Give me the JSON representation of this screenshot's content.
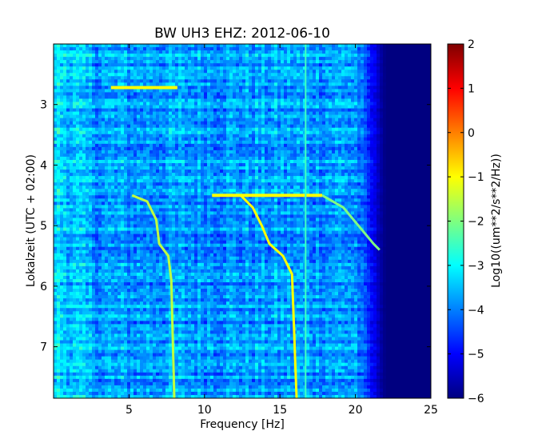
{
  "chart_data": {
    "type": "heatmap",
    "title": "BW UH3 EHZ: 2012-06-10",
    "xlabel": "Frequency [Hz]",
    "ylabel": "Lokalzeit (UTC + 02:00)",
    "xlim": [
      0,
      25
    ],
    "ylim": [
      7.85,
      2.0
    ],
    "y_inverted": true,
    "x_ticks": [
      5,
      10,
      15,
      20,
      25
    ],
    "x_tick_labels": [
      "5",
      "10",
      "15",
      "20",
      "25"
    ],
    "y_ticks": [
      3,
      4,
      5,
      6,
      7
    ],
    "y_tick_labels": [
      "3",
      "4",
      "5",
      "6",
      "7"
    ],
    "grid": false,
    "colorbar": {
      "label": "Log10((um**2/s**2/Hz))",
      "range": [
        -6,
        2
      ],
      "ticks": [
        -6,
        -5,
        -4,
        -3,
        -2,
        -1,
        0,
        1,
        2
      ],
      "tick_labels": [
        "−6",
        "−5",
        "−4",
        "−3",
        "−2",
        "−1",
        "0",
        "1",
        "2"
      ],
      "colormap": "jet"
    },
    "background_level": -3.8,
    "high_freq_cutoff_hz": [
      20,
      22
    ],
    "high_freq_level": -6,
    "horizontal_features": [
      {
        "time": 2.72,
        "freq_range": [
          3.8,
          8.2
        ],
        "level": -1
      },
      {
        "time": 4.5,
        "freq_range": [
          10.5,
          17.8
        ],
        "level": -1
      }
    ],
    "vertical_features": [
      {
        "freq": 16.7,
        "time_range": [
          2.0,
          7.85
        ],
        "level": -2.5
      }
    ],
    "curves": [
      {
        "name": "",
        "points": [
          [
            5.2,
            4.5
          ],
          [
            6.2,
            4.6
          ],
          [
            6.8,
            4.9
          ],
          [
            7.0,
            5.3
          ],
          [
            7.6,
            5.5
          ],
          [
            7.8,
            5.9
          ],
          [
            8.0,
            7.85
          ]
        ],
        "level": -1.5
      },
      {
        "name": "",
        "points": [
          [
            12.4,
            4.5
          ],
          [
            13.2,
            4.7
          ],
          [
            13.8,
            5.0
          ],
          [
            14.3,
            5.3
          ],
          [
            15.2,
            5.5
          ],
          [
            15.8,
            5.8
          ],
          [
            16.1,
            7.85
          ]
        ],
        "level": -1
      },
      {
        "name": "",
        "points": [
          [
            17.8,
            4.5
          ],
          [
            19.2,
            4.7
          ],
          [
            20.2,
            5.0
          ],
          [
            21.2,
            5.3
          ],
          [
            21.6,
            5.4
          ]
        ],
        "level": -2
      }
    ]
  }
}
